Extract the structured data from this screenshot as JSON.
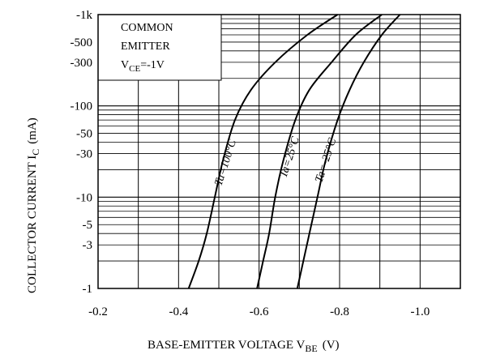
{
  "chart_data": {
    "type": "line",
    "xlabel": "BASE-EMITTER VOLTAGE V",
    "xlabel_sub": "BE",
    "xlabel_unit": "(V)",
    "ylabel": "COLLECTOR CURRENT I",
    "ylabel_sub": "C",
    "ylabel_unit": "(mA)",
    "xlim": [
      -0.2,
      -1.1
    ],
    "ylim": [
      1,
      1000
    ],
    "y_scale": "log",
    "grid": true,
    "x_ticks": [
      {
        "value": -0.2,
        "label": "-0.2"
      },
      {
        "value": -0.4,
        "label": "-0.4"
      },
      {
        "value": -0.6,
        "label": "-0.6"
      },
      {
        "value": -0.8,
        "label": "-0.8"
      },
      {
        "value": -1.0,
        "label": "-1.0"
      }
    ],
    "y_ticks": [
      {
        "value": 1,
        "label": "-1"
      },
      {
        "value": 3,
        "label": "-3"
      },
      {
        "value": 5,
        "label": "-5"
      },
      {
        "value": 10,
        "label": "-10"
      },
      {
        "value": 30,
        "label": "-30"
      },
      {
        "value": 50,
        "label": "-50"
      },
      {
        "value": 100,
        "label": "-100"
      },
      {
        "value": 300,
        "label": "-300"
      },
      {
        "value": 500,
        "label": "-500"
      },
      {
        "value": 1000,
        "label": "-1k"
      }
    ],
    "legend": {
      "line1": "COMMON",
      "line2": "EMITTER",
      "vce_main": "V",
      "vce_sub": "CE",
      "vce_value": "=-1V",
      "placement": "top-left"
    },
    "series": [
      {
        "name": "Ta=100°C",
        "points": [
          [
            -0.425,
            1
          ],
          [
            -0.45,
            2
          ],
          [
            -0.47,
            4
          ],
          [
            -0.49,
            10
          ],
          [
            -0.51,
            25
          ],
          [
            -0.54,
            70
          ],
          [
            -0.58,
            150
          ],
          [
            -0.64,
            300
          ],
          [
            -0.72,
            600
          ],
          [
            -0.795,
            1000
          ]
        ]
      },
      {
        "name": "Ta=25°C",
        "points": [
          [
            -0.595,
            1
          ],
          [
            -0.61,
            2
          ],
          [
            -0.625,
            4
          ],
          [
            -0.64,
            10
          ],
          [
            -0.66,
            25
          ],
          [
            -0.69,
            70
          ],
          [
            -0.725,
            150
          ],
          [
            -0.78,
            300
          ],
          [
            -0.84,
            600
          ],
          [
            -0.905,
            1000
          ]
        ]
      },
      {
        "name": "Ta=-25°C",
        "label_main": "Ta=",
        "label_sign": "-",
        "label_rest": "25°C",
        "points": [
          [
            -0.695,
            1
          ],
          [
            -0.71,
            2
          ],
          [
            -0.725,
            4
          ],
          [
            -0.745,
            10
          ],
          [
            -0.765,
            25
          ],
          [
            -0.795,
            70
          ],
          [
            -0.825,
            150
          ],
          [
            -0.86,
            300
          ],
          [
            -0.905,
            600
          ],
          [
            -0.95,
            1000
          ]
        ]
      }
    ]
  }
}
